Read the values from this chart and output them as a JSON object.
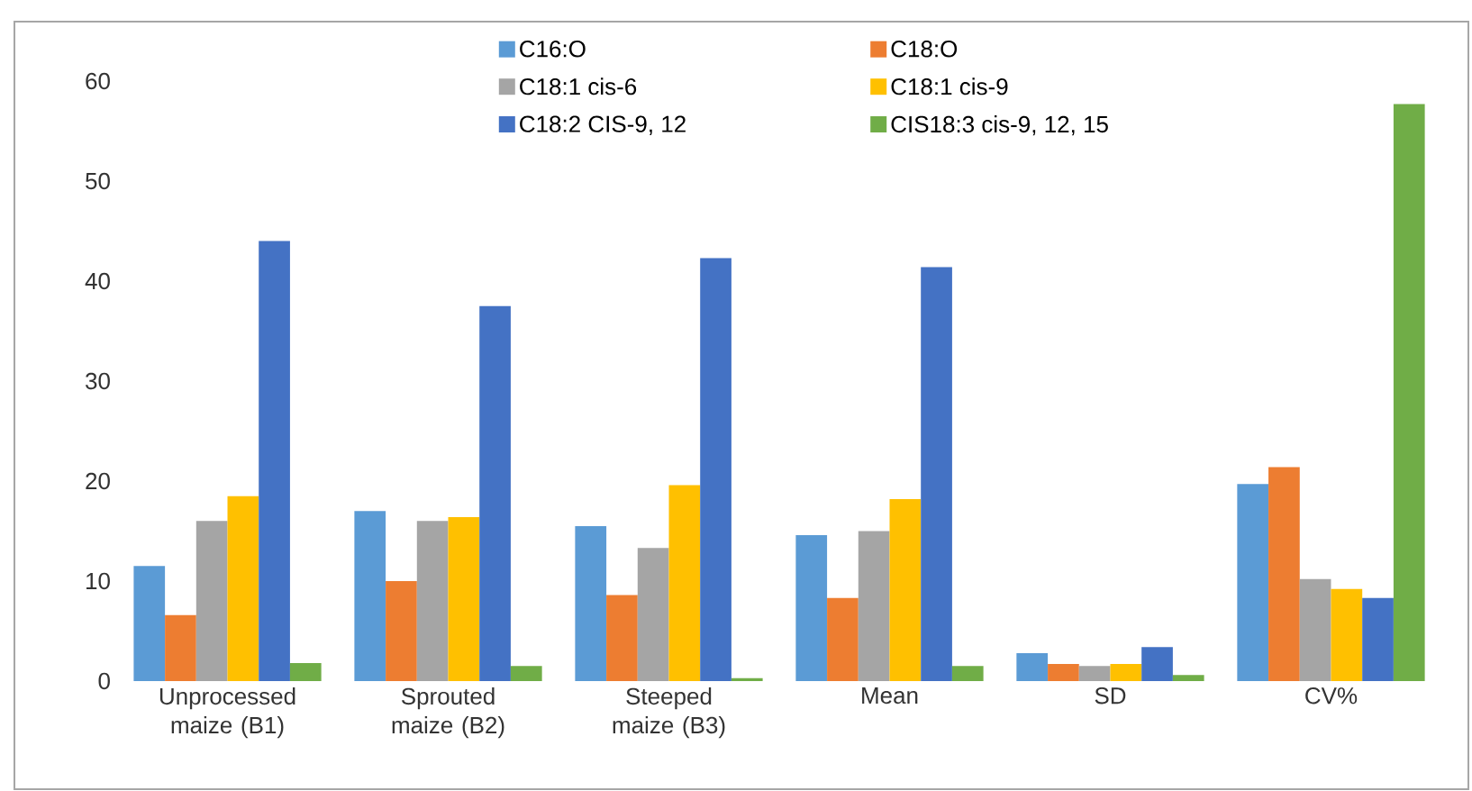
{
  "chart_data": {
    "type": "bar",
    "categories": [
      "Unprocessed maize (B1)",
      "Sprouted maize (B2)",
      "Steeped maize (B3)",
      "Mean",
      "SD",
      "CV%"
    ],
    "series": [
      {
        "name": "C16:O",
        "color": "#5b9bd5",
        "values": [
          11.5,
          17,
          15.5,
          14.6,
          2.8,
          19.7
        ]
      },
      {
        "name": "C18:O",
        "color": "#ed7d31",
        "values": [
          6.6,
          10,
          8.6,
          8.3,
          1.7,
          21.4
        ]
      },
      {
        "name": "C18:1 cis-6",
        "color": "#a5a5a5",
        "values": [
          16,
          16,
          13.3,
          15,
          1.5,
          10.2
        ]
      },
      {
        "name": "C18:1 cis-9",
        "color": "#ffc000",
        "values": [
          18.5,
          16.4,
          19.6,
          18.2,
          1.7,
          9.2
        ]
      },
      {
        "name": "C18:2 CIS-9, 12",
        "color": "#4472c4",
        "values": [
          44,
          37.5,
          42.3,
          41.4,
          3.4,
          8.3
        ]
      },
      {
        "name": "CIS18:3 cis-9, 12, 15",
        "color": "#70ad47",
        "values": [
          1.8,
          1.5,
          0.3,
          1.5,
          0.6,
          57.7
        ]
      }
    ],
    "ylim": [
      0,
      60
    ],
    "yticks": [
      0,
      10,
      20,
      30,
      40,
      50,
      60
    ],
    "grid": false,
    "legend": "top"
  }
}
